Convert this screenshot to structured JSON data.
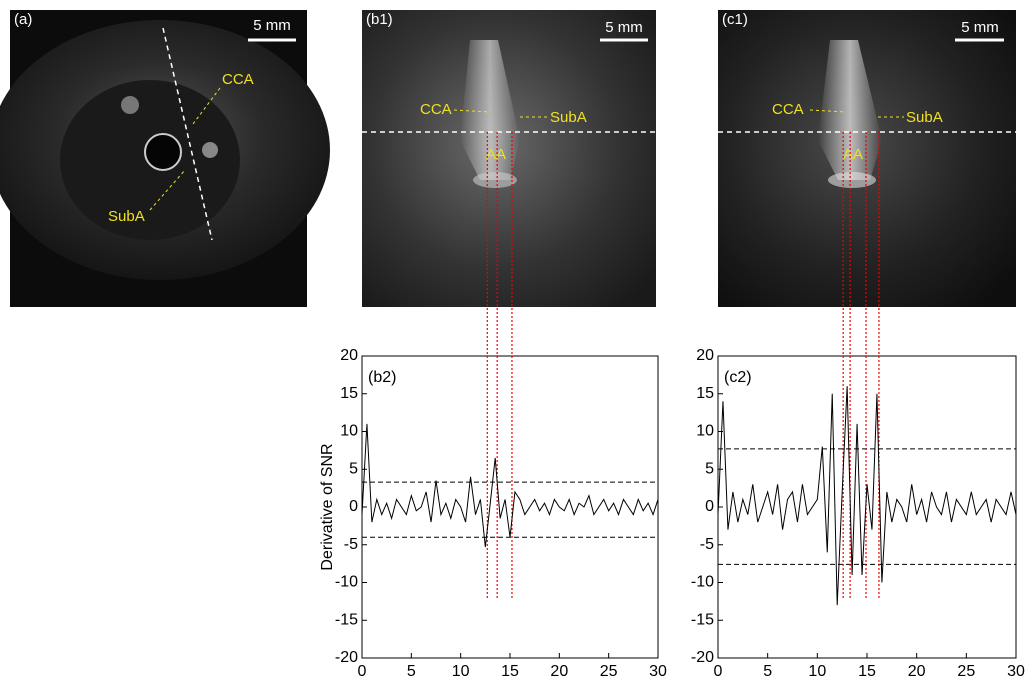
{
  "images": [
    {
      "label": "(a)",
      "scale_bar": "5 mm",
      "annotations": [
        "CCA",
        "SubA"
      ]
    },
    {
      "label": "(b1)",
      "scale_bar": "5 mm",
      "annotations": [
        "CCA",
        "SubA",
        "AA"
      ]
    },
    {
      "label": "(c1)",
      "scale_bar": "5 mm",
      "annotations": [
        "CCA",
        "SubA",
        "AA"
      ]
    }
  ],
  "chart_data": [
    {
      "type": "line",
      "panel_label": "(b2)",
      "y_label": "Derivative of SNR",
      "x": [
        0,
        0.5,
        1,
        1.5,
        2,
        2.5,
        3,
        3.5,
        4,
        4.5,
        5,
        5.5,
        6,
        6.5,
        7,
        7.5,
        8,
        8.5,
        9,
        9.5,
        10,
        10.5,
        11,
        11.5,
        12,
        12.5,
        13,
        13.5,
        14,
        14.5,
        15,
        15.5,
        16,
        16.5,
        17,
        17.5,
        18,
        18.5,
        19,
        19.5,
        20,
        20.5,
        21,
        21.5,
        22,
        22.5,
        23,
        23.5,
        24,
        24.5,
        25,
        25.5,
        26,
        26.5,
        27,
        27.5,
        28,
        28.5,
        29,
        29.5,
        30
      ],
      "series": [
        {
          "color": "#000000",
          "values": [
            -1,
            11,
            -2,
            1,
            -1,
            0.5,
            -1.5,
            1,
            0,
            -1,
            1.5,
            -0.5,
            0,
            2,
            -2,
            3.5,
            -1,
            0.5,
            -1.5,
            1,
            0,
            -2,
            4,
            -1,
            1,
            -5.3,
            0.5,
            6.5,
            -1.5,
            1,
            -4,
            2,
            1,
            -1,
            0,
            1,
            -0.5,
            0.5,
            -1,
            1,
            0,
            -0.5,
            1,
            -1,
            0.5,
            0,
            1.5,
            -1,
            0,
            1,
            -0.5,
            0.5,
            -1,
            1,
            0,
            -1,
            1,
            -0.5,
            0.5,
            -1,
            1
          ]
        }
      ],
      "hlines": [
        3.3,
        -4
      ],
      "vlines": [
        12.7,
        13.7,
        15.2
      ],
      "xlim": [
        0,
        30
      ],
      "xticks": [
        0,
        5,
        10,
        15,
        20,
        25,
        30
      ],
      "ylim": [
        -20,
        20
      ],
      "yticks": [
        -20,
        -15,
        -10,
        -5,
        0,
        5,
        10,
        15,
        20
      ]
    },
    {
      "type": "line",
      "panel_label": "(c2)",
      "x": [
        0,
        0.5,
        1,
        1.5,
        2,
        2.5,
        3,
        3.5,
        4,
        4.5,
        5,
        5.5,
        6,
        6.5,
        7,
        7.5,
        8,
        8.5,
        9,
        9.5,
        10,
        10.5,
        11,
        11.5,
        12,
        12.5,
        13,
        13.5,
        14,
        14.5,
        15,
        15.5,
        16,
        16.5,
        17,
        17.5,
        18,
        18.5,
        19,
        19.5,
        20,
        20.5,
        21,
        21.5,
        22,
        22.5,
        23,
        23.5,
        24,
        24.5,
        25,
        25.5,
        26,
        26.5,
        27,
        27.5,
        28,
        28.5,
        29,
        29.5,
        30
      ],
      "series": [
        {
          "color": "#000000",
          "values": [
            -1,
            14,
            -3,
            2,
            -2,
            1,
            -1,
            3,
            -2,
            0,
            2,
            -1,
            3,
            -3,
            1,
            2,
            -2,
            3,
            -1,
            0,
            1,
            8,
            -6,
            15,
            -13,
            2,
            16,
            -9,
            11,
            -9,
            3,
            -3,
            15,
            -10,
            2,
            -2,
            1,
            0,
            -2,
            3,
            -1,
            1,
            -2,
            2,
            0,
            -1,
            2,
            -2,
            1,
            0,
            -1,
            2,
            -1,
            0,
            1,
            -2,
            1,
            0,
            -1,
            2,
            -1
          ]
        }
      ],
      "hlines": [
        7.7,
        -7.6
      ],
      "vlines": [
        12.6,
        13.3,
        14.9,
        16.2
      ],
      "xlim": [
        0,
        30
      ],
      "xticks": [
        0,
        5,
        10,
        15,
        20,
        25,
        30
      ],
      "ylim": [
        -20,
        20
      ],
      "yticks": [
        -20,
        -15,
        -10,
        -5,
        0,
        5,
        10,
        15,
        20
      ]
    }
  ]
}
